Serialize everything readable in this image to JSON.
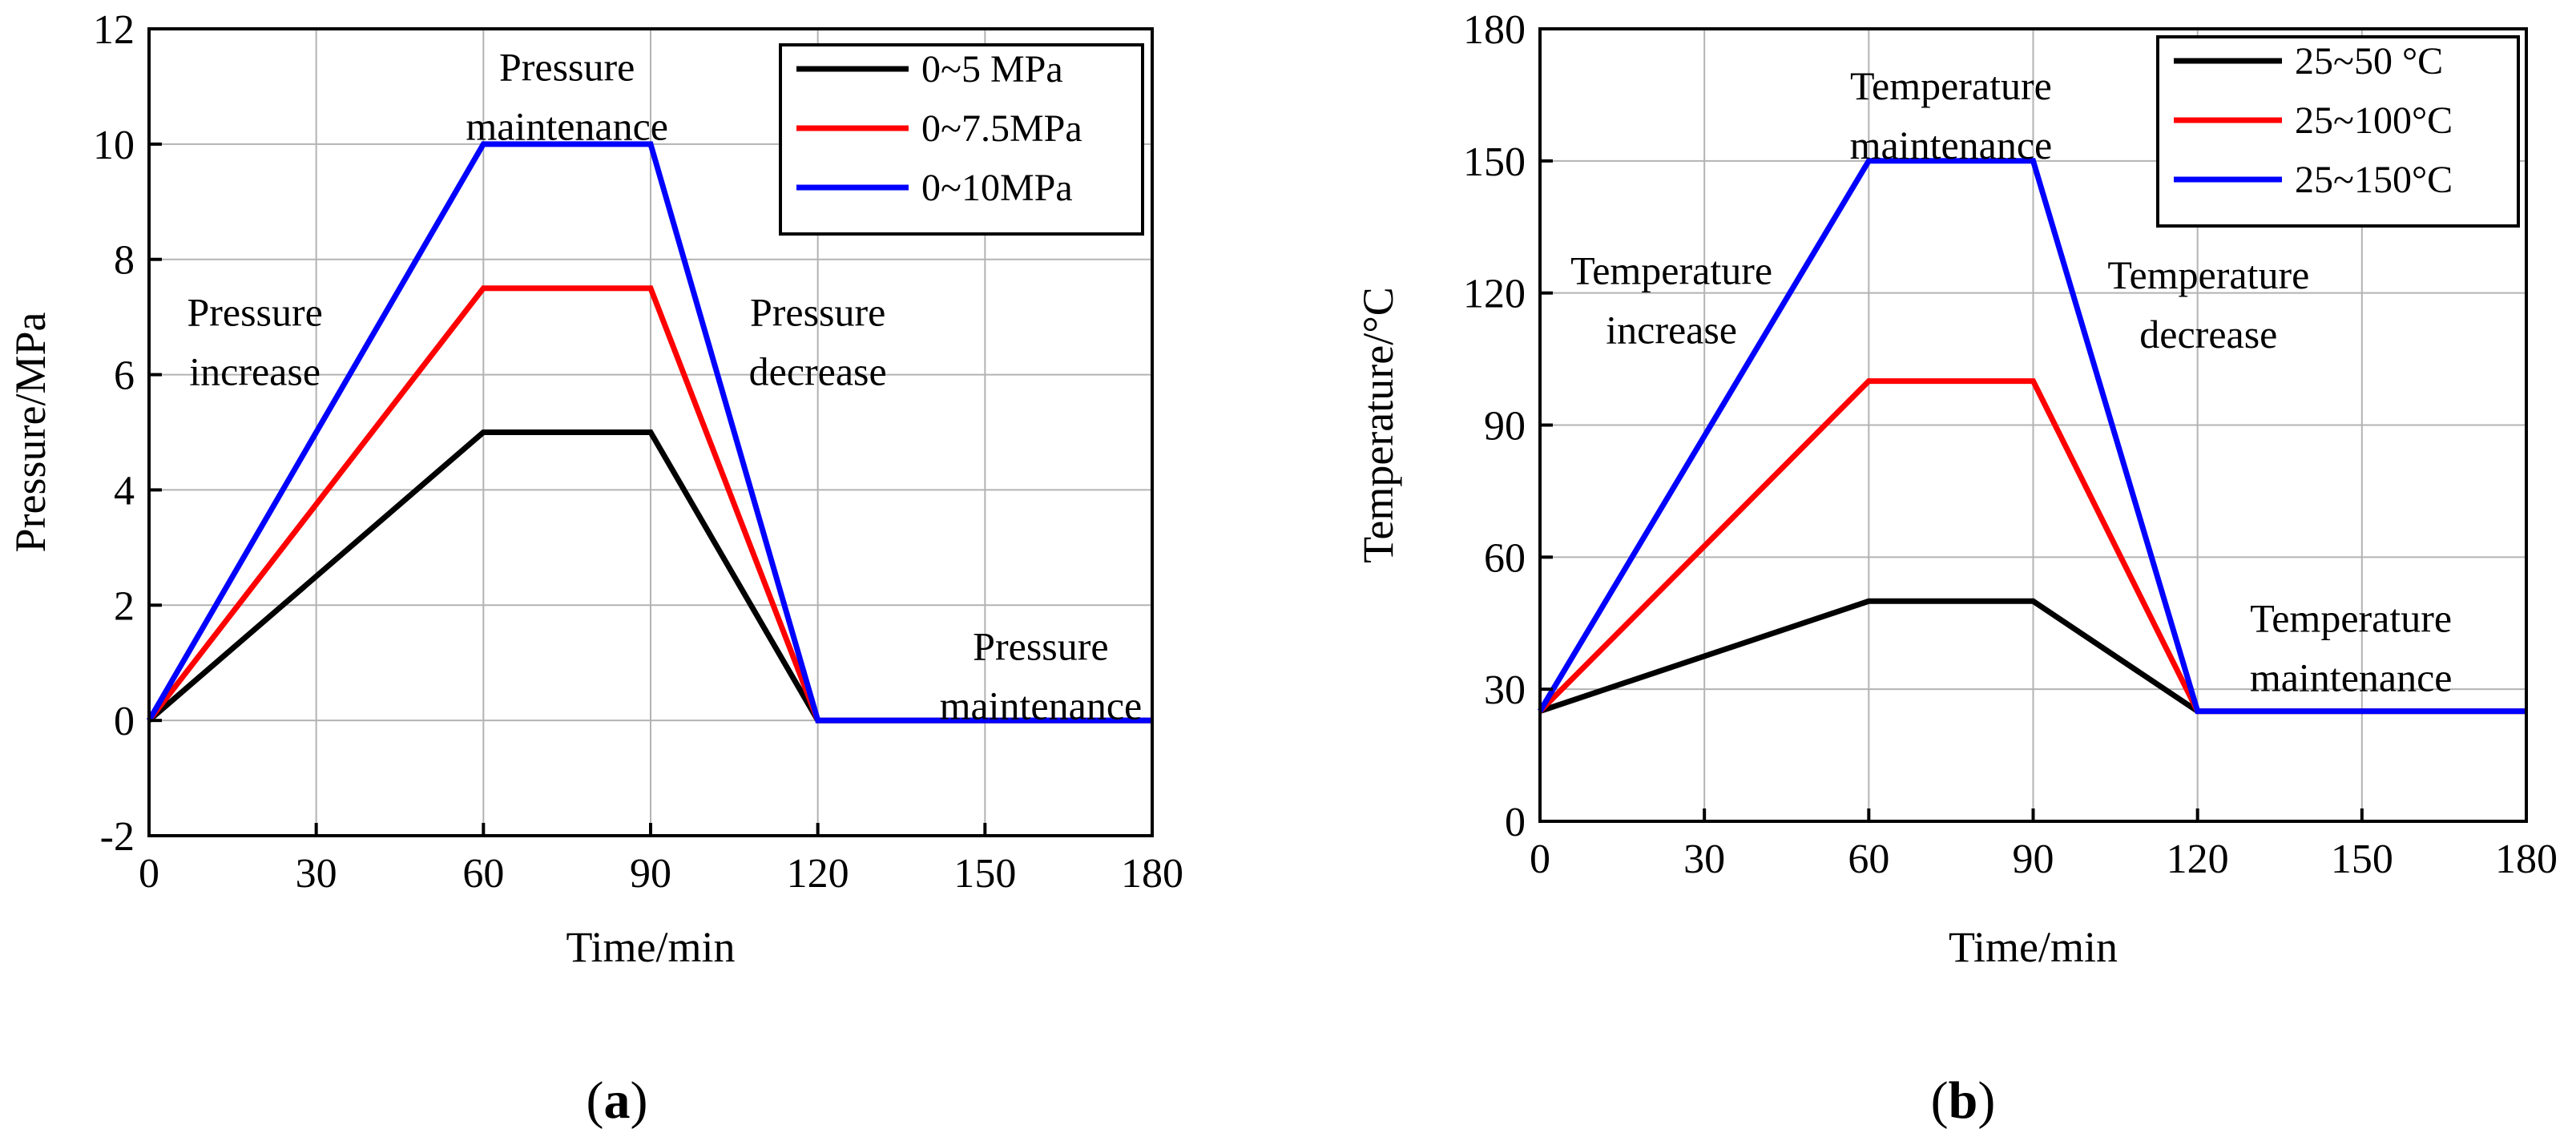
{
  "figure": {
    "panel_a_label": {
      "open": "(",
      "letter": "a",
      "close": ")"
    },
    "panel_b_label": {
      "open": "(",
      "letter": "b",
      "close": ")"
    }
  },
  "chart_data": [
    {
      "type": "line",
      "xlabel": "Time/min",
      "ylabel": "Pressure/MPa",
      "xlim": [
        0,
        180
      ],
      "ylim": [
        -2,
        12
      ],
      "xticks": [
        0,
        30,
        60,
        90,
        120,
        150,
        180
      ],
      "yticks": [
        -2,
        0,
        2,
        4,
        6,
        8,
        10,
        12
      ],
      "grid": true,
      "legend_position": "top-right",
      "series": [
        {
          "name": "0~5 MPa",
          "color": "#000000",
          "x": [
            0,
            60,
            90,
            120,
            180
          ],
          "y": [
            0,
            5,
            5,
            0,
            0
          ]
        },
        {
          "name": "0~7.5MPa",
          "color": "#ff0000",
          "x": [
            0,
            60,
            90,
            120,
            180
          ],
          "y": [
            0,
            7.5,
            7.5,
            0,
            0
          ]
        },
        {
          "name": "0~10MPa",
          "color": "#0000ff",
          "x": [
            0,
            60,
            90,
            120,
            180
          ],
          "y": [
            0,
            10,
            10,
            0,
            0
          ]
        }
      ],
      "annotations": [
        {
          "lines": [
            "Pressure",
            "increase"
          ],
          "x": 19,
          "y": 6.85
        },
        {
          "lines": [
            "Pressure",
            "maintenance"
          ],
          "x": 75,
          "y": 11.1
        },
        {
          "lines": [
            "Pressure",
            "decrease"
          ],
          "x": 120,
          "y": 6.85
        },
        {
          "lines": [
            "Pressure",
            "maintenance"
          ],
          "x": 160,
          "y": 1.05
        }
      ]
    },
    {
      "type": "line",
      "xlabel": "Time/min",
      "ylabel": "Temperature/°C",
      "xlim": [
        0,
        180
      ],
      "ylim": [
        0,
        180
      ],
      "xticks": [
        0,
        30,
        60,
        90,
        120,
        150,
        180
      ],
      "yticks": [
        0,
        30,
        60,
        90,
        120,
        150,
        180
      ],
      "grid": true,
      "legend_position": "top-right",
      "series": [
        {
          "name": "25~50 °C",
          "color": "#000000",
          "x": [
            0,
            60,
            90,
            120,
            180
          ],
          "y": [
            25,
            50,
            50,
            25,
            25
          ]
        },
        {
          "name": "25~100°C",
          "color": "#ff0000",
          "x": [
            0,
            60,
            90,
            120,
            180
          ],
          "y": [
            25,
            100,
            100,
            25,
            25
          ]
        },
        {
          "name": "25~150°C",
          "color": "#0000ff",
          "x": [
            0,
            60,
            90,
            120,
            180
          ],
          "y": [
            25,
            150,
            150,
            25,
            25
          ]
        }
      ],
      "annotations": [
        {
          "lines": [
            "Temperature",
            "increase"
          ],
          "x": 24,
          "y": 122
        },
        {
          "lines": [
            "Temperature",
            "maintenance"
          ],
          "x": 75,
          "y": 164
        },
        {
          "lines": [
            "Temperature",
            "decrease"
          ],
          "x": 122,
          "y": 121
        },
        {
          "lines": [
            "Temperature",
            "maintenance"
          ],
          "x": 148,
          "y": 43
        }
      ]
    }
  ]
}
